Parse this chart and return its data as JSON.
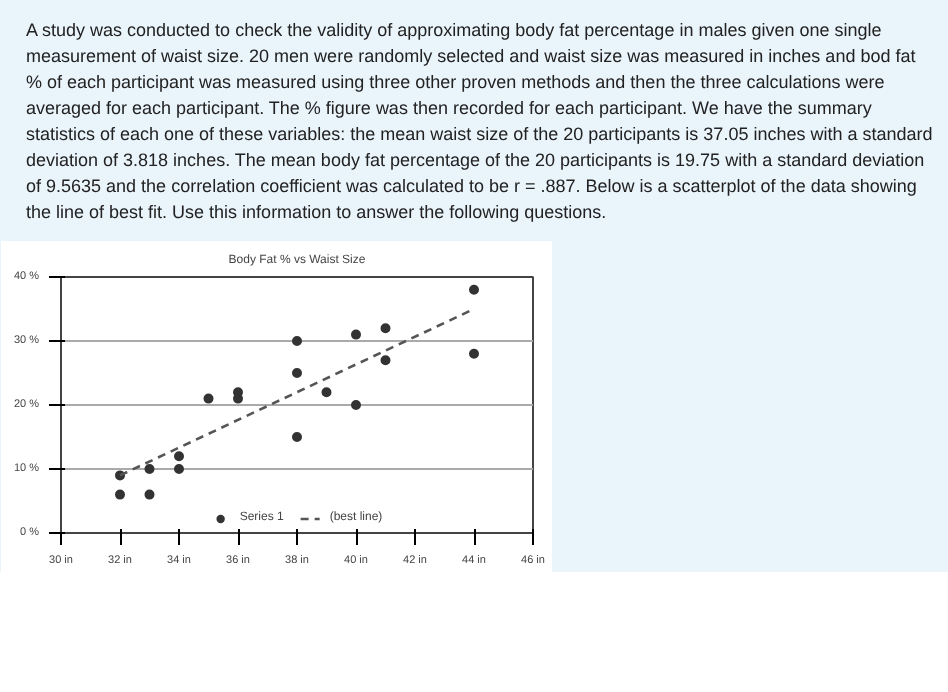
{
  "chart_data": {
    "type": "scatter",
    "title": "Body Fat % vs Waist Size",
    "annotations": [
      "A study was conducted to check the validity of approximating body fat percentage in males given one single measurement of waist size. 20 men were randomly selected and waist size was measured in inches and bod fat % of each participant was measured using three other proven methods and then the three calculations were averaged for each participant. The % figure was then recorded for each participant. We have the summary statistics of each one of these variables: the mean waist size of the 20 participants is 37.05 inches with a standard deviation of 3.818 inches. The mean body fat percentage of the 20 participants is 19.75 with a standard deviation of 9.5635 and the correlation coefficient was calculated to be r = .887. Below is a scatterplot of the data showing the line of best fit. Use this information to answer the following questions."
    ],
    "series": [
      {
        "name": "Series 1",
        "marker": "circle",
        "color": "#333333",
        "x": [
          32,
          32,
          33,
          33,
          34,
          34,
          35,
          36,
          36,
          38,
          38,
          38,
          39,
          40,
          40,
          41,
          41,
          44,
          44
        ],
        "values": [
          9,
          6,
          10,
          6,
          12,
          10,
          21,
          22,
          21,
          30,
          25,
          15,
          22,
          31,
          20,
          32,
          27,
          38,
          28
        ]
      },
      {
        "name": "(best line)",
        "type": "line",
        "color": "#555555",
        "line_style": "dashed",
        "x": [
          32,
          44
        ],
        "values": [
          9,
          35
        ]
      }
    ],
    "xlim": [
      30,
      46
    ],
    "xticks": [
      {
        "value": 30,
        "label": "30 in"
      },
      {
        "value": 32,
        "label": "32 in"
      },
      {
        "value": 34,
        "label": "34 in"
      },
      {
        "value": 36,
        "label": "36 in"
      },
      {
        "value": 38,
        "label": "38 in"
      },
      {
        "value": 40,
        "label": "40 in"
      },
      {
        "value": 42,
        "label": "42 in"
      },
      {
        "value": 44,
        "label": "44 in"
      },
      {
        "value": 46,
        "label": "46 in"
      }
    ],
    "ylim": [
      0,
      40
    ],
    "yticks": [
      {
        "value": 0,
        "label": "0 %"
      },
      {
        "value": 10,
        "label": "10 %"
      },
      {
        "value": 20,
        "label": "20 %"
      },
      {
        "value": 30,
        "label": "30 %"
      },
      {
        "value": 40,
        "label": "40 %"
      }
    ],
    "grid": "y",
    "legend": "bottom"
  }
}
